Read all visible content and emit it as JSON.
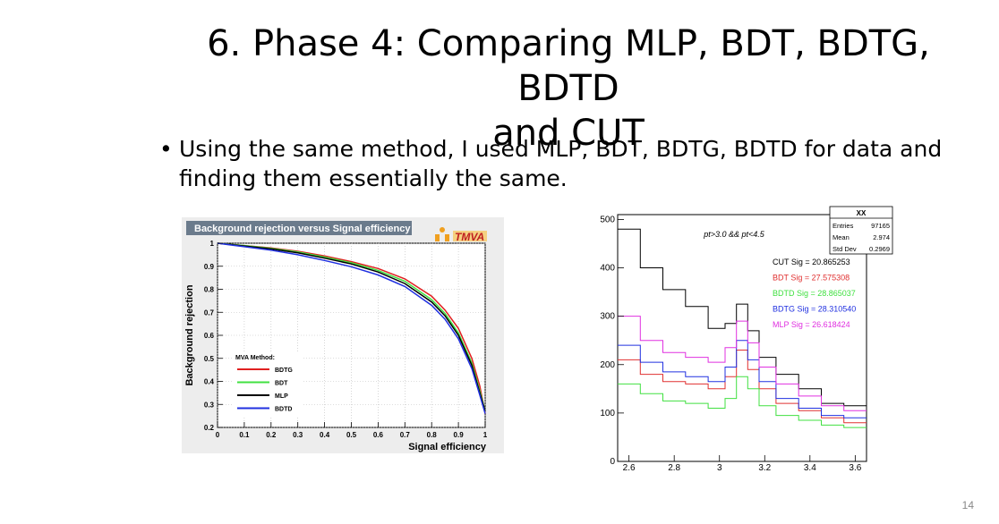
{
  "slide": {
    "title_line1": "6. Phase 4: Comparing MLP, BDT, BDTG, BDTD",
    "title_line2": "and CUT",
    "bullet_text": "Using the same method, I used MLP, BDT, BDTG, BDTD for data and finding them essentially the same.",
    "page_number": "14"
  },
  "chart_data": [
    {
      "type": "line",
      "title": "Background rejection versus Signal efficiency",
      "logo": "TMVA",
      "xlabel": "Signal efficiency",
      "ylabel": "Background rejection",
      "xlim": [
        0,
        1
      ],
      "ylim": [
        0.2,
        1
      ],
      "xticks": [
        "0",
        "0.1",
        "0.2",
        "0.3",
        "0.4",
        "0.5",
        "0.6",
        "0.7",
        "0.8",
        "0.9",
        "1"
      ],
      "yticks": [
        "0.2",
        "0.3",
        "0.4",
        "0.5",
        "0.6",
        "0.7",
        "0.8",
        "0.9",
        "1"
      ],
      "legend_title": "MVA Method:",
      "legend_placement": "bottom-left",
      "grid": true,
      "x": [
        0,
        0.1,
        0.2,
        0.3,
        0.4,
        0.5,
        0.6,
        0.7,
        0.8,
        0.85,
        0.9,
        0.95,
        0.98,
        1.0
      ],
      "series": [
        {
          "name": "BDTG",
          "color": "#e02020",
          "values": [
            1.0,
            0.99,
            0.98,
            0.965,
            0.945,
            0.92,
            0.89,
            0.845,
            0.77,
            0.71,
            0.63,
            0.5,
            0.38,
            0.26
          ]
        },
        {
          "name": "BDT",
          "color": "#40e040",
          "values": [
            1.0,
            0.99,
            0.978,
            0.962,
            0.94,
            0.915,
            0.882,
            0.835,
            0.755,
            0.695,
            0.61,
            0.48,
            0.36,
            0.27
          ]
        },
        {
          "name": "MLP",
          "color": "#000000",
          "values": [
            1.0,
            0.988,
            0.975,
            0.958,
            0.935,
            0.91,
            0.875,
            0.825,
            0.745,
            0.685,
            0.6,
            0.47,
            0.35,
            0.27
          ]
        },
        {
          "name": "BDTD",
          "color": "#2030e0",
          "values": [
            1.0,
            0.985,
            0.97,
            0.95,
            0.925,
            0.898,
            0.862,
            0.812,
            0.73,
            0.67,
            0.585,
            0.455,
            0.34,
            0.26
          ]
        }
      ]
    },
    {
      "type": "histogram",
      "annotation": "pt>3.0 && pt<4.5",
      "xlim": [
        2.55,
        3.65
      ],
      "ylim": [
        0,
        510
      ],
      "xticks": [
        "2.6",
        "2.8",
        "3",
        "3.2",
        "3.4",
        "3.6"
      ],
      "yticks": [
        "0",
        "100",
        "200",
        "300",
        "400",
        "500"
      ],
      "stats": {
        "title": "XX",
        "rows": [
          {
            "label": "Entries",
            "value": "97165"
          },
          {
            "label": "Mean",
            "value": "2.974"
          },
          {
            "label": "Std Dev",
            "value": "0.2969"
          }
        ]
      },
      "x": [
        2.6,
        2.7,
        2.8,
        2.9,
        3.0,
        3.05,
        3.1,
        3.15,
        3.2,
        3.3,
        3.4,
        3.5,
        3.6
      ],
      "series": [
        {
          "name": "CUT Sig = 20.865253",
          "color": "#000000",
          "values": [
            480,
            400,
            355,
            320,
            275,
            285,
            325,
            270,
            215,
            180,
            150,
            120,
            115
          ]
        },
        {
          "name": "BDT Sig = 27.575308",
          "color": "#e03030",
          "values": [
            210,
            180,
            165,
            160,
            150,
            175,
            230,
            190,
            150,
            120,
            105,
            90,
            80
          ]
        },
        {
          "name": "BDTD Sig = 28.865037",
          "color": "#40e040",
          "values": [
            160,
            140,
            125,
            120,
            110,
            130,
            175,
            150,
            115,
            95,
            85,
            75,
            70
          ]
        },
        {
          "name": "BDTG Sig = 28.310540",
          "color": "#2030e0",
          "values": [
            240,
            205,
            185,
            175,
            165,
            195,
            250,
            210,
            165,
            130,
            110,
            95,
            90
          ]
        },
        {
          "name": "MLP Sig = 26.618424",
          "color": "#e030e0",
          "values": [
            300,
            250,
            225,
            215,
            205,
            235,
            290,
            245,
            195,
            160,
            135,
            115,
            105
          ]
        }
      ]
    }
  ]
}
